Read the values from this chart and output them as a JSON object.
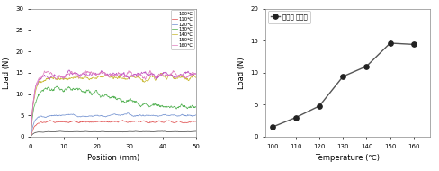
{
  "left_chart": {
    "xlabel": "Position (mm)",
    "ylabel": "Load (N)",
    "xlim": [
      0,
      50
    ],
    "ylim": [
      0,
      30
    ],
    "xticks": [
      0,
      10,
      20,
      30,
      40,
      50
    ],
    "yticks": [
      0,
      5,
      10,
      15,
      20,
      25,
      30
    ],
    "legend_labels": [
      "100℃",
      "110℃",
      "120℃",
      "130℃",
      "140℃",
      "150℃",
      "160℃"
    ],
    "line_colors": [
      "#444444",
      "#e05050",
      "#7090d0",
      "#50b050",
      "#c8b830",
      "#c050c0",
      "#e080c0"
    ],
    "avg_loads": [
      1.2,
      3.5,
      5.0,
      10.5,
      13.8,
      14.5,
      14.5
    ],
    "noise_scales": [
      0.12,
      0.18,
      0.12,
      0.15,
      0.1,
      0.1,
      0.12
    ],
    "n_points": 500
  },
  "right_chart": {
    "xlabel": "Temperature (℃)",
    "ylabel": "Load (N)",
    "xlim": [
      97,
      167
    ],
    "ylim": [
      0,
      20
    ],
    "xticks": [
      100,
      110,
      120,
      130,
      140,
      150,
      160
    ],
    "yticks": [
      0,
      5,
      10,
      15,
      20
    ],
    "legend_label": "온도별 그래프",
    "temperatures": [
      100,
      110,
      120,
      130,
      140,
      150,
      160
    ],
    "loads": [
      1.5,
      3.0,
      4.8,
      9.4,
      11.0,
      14.6,
      14.4
    ],
    "marker": "o",
    "line_color": "#555555",
    "marker_facecolor": "#222222",
    "marker_edgecolor": "#222222",
    "markersize": 4.0,
    "linewidth": 1.0
  },
  "bg_color": "#ffffff",
  "seed": 12345
}
